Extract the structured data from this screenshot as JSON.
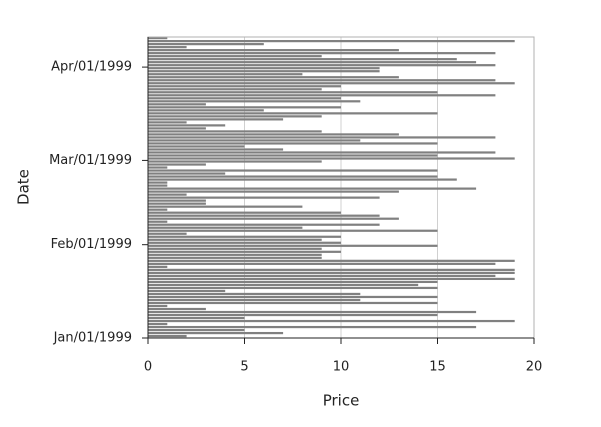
{
  "chart_data": {
    "type": "hbar_date",
    "xlabel": "Price",
    "ylabel": "Date",
    "color": "#808080",
    "x": [
      "1999-01-01",
      "1999-01-02",
      "1999-01-03",
      "1999-01-04",
      "1999-01-05",
      "1999-01-06",
      "1999-01-07",
      "1999-01-08",
      "1999-01-09",
      "1999-01-10",
      "1999-01-11",
      "1999-01-12",
      "1999-01-13",
      "1999-01-14",
      "1999-01-15",
      "1999-01-16",
      "1999-01-17",
      "1999-01-18",
      "1999-01-19",
      "1999-01-20",
      "1999-01-21",
      "1999-01-22",
      "1999-01-23",
      "1999-01-24",
      "1999-01-25",
      "1999-01-26",
      "1999-01-27",
      "1999-01-28",
      "1999-01-29",
      "1999-01-30",
      "1999-01-31",
      "1999-02-01",
      "1999-02-02",
      "1999-02-03",
      "1999-02-04",
      "1999-02-05",
      "1999-02-06",
      "1999-02-07",
      "1999-02-08",
      "1999-02-09",
      "1999-02-10",
      "1999-02-11",
      "1999-02-12",
      "1999-02-13",
      "1999-02-14",
      "1999-02-15",
      "1999-02-16",
      "1999-02-17",
      "1999-02-18",
      "1999-02-19",
      "1999-02-20",
      "1999-02-21",
      "1999-02-22",
      "1999-02-23",
      "1999-02-24",
      "1999-02-25",
      "1999-02-26",
      "1999-02-27",
      "1999-02-28",
      "1999-03-01",
      "1999-03-02",
      "1999-03-03",
      "1999-03-04",
      "1999-03-05",
      "1999-03-06",
      "1999-03-07",
      "1999-03-08",
      "1999-03-09",
      "1999-03-10",
      "1999-03-11",
      "1999-03-12",
      "1999-03-13",
      "1999-03-14",
      "1999-03-15",
      "1999-03-16",
      "1999-03-17",
      "1999-03-18",
      "1999-03-19",
      "1999-03-20",
      "1999-03-21",
      "1999-03-22",
      "1999-03-23",
      "1999-03-24",
      "1999-03-25",
      "1999-03-26",
      "1999-03-27",
      "1999-03-28",
      "1999-03-29",
      "1999-03-30",
      "1999-03-31",
      "1999-04-01",
      "1999-04-02",
      "1999-04-03",
      "1999-04-04",
      "1999-04-05",
      "1999-04-06",
      "1999-04-07",
      "1999-04-08",
      "1999-04-09",
      "1999-04-10"
    ],
    "values": [
      2,
      7,
      5,
      17,
      1,
      19,
      5,
      15,
      17,
      3,
      1,
      15,
      11,
      15,
      11,
      4,
      15,
      14,
      15,
      19,
      18,
      19,
      19,
      1,
      18,
      19,
      9,
      9,
      10,
      9,
      15,
      10,
      9,
      10,
      2,
      15,
      8,
      12,
      1,
      13,
      12,
      10,
      1,
      8,
      3,
      3,
      12,
      2,
      13,
      17,
      1,
      1,
      16,
      15,
      4,
      15,
      1,
      3,
      9,
      19,
      15,
      18,
      7,
      5,
      15,
      11,
      18,
      13,
      9,
      3,
      4,
      2,
      7,
      9,
      15,
      6,
      10,
      3,
      11,
      10,
      18,
      15,
      9,
      10,
      19,
      18,
      13,
      8,
      12,
      12,
      18,
      17,
      16,
      9,
      18,
      13,
      2,
      6,
      19,
      1
    ],
    "xlim": [
      0,
      20
    ],
    "xticks": [
      0,
      5,
      10,
      15,
      20
    ],
    "ylim": [
      "1999-01-01",
      "1999-04-11"
    ],
    "yticks": [
      {
        "value": "1999-01-01",
        "label": "Jan/01/1999"
      },
      {
        "value": "1999-02-01",
        "label": "Feb/01/1999"
      },
      {
        "value": "1999-03-01",
        "label": "Mar/01/1999"
      },
      {
        "value": "1999-04-01",
        "label": "Apr/01/1999"
      }
    ],
    "grid": true
  }
}
